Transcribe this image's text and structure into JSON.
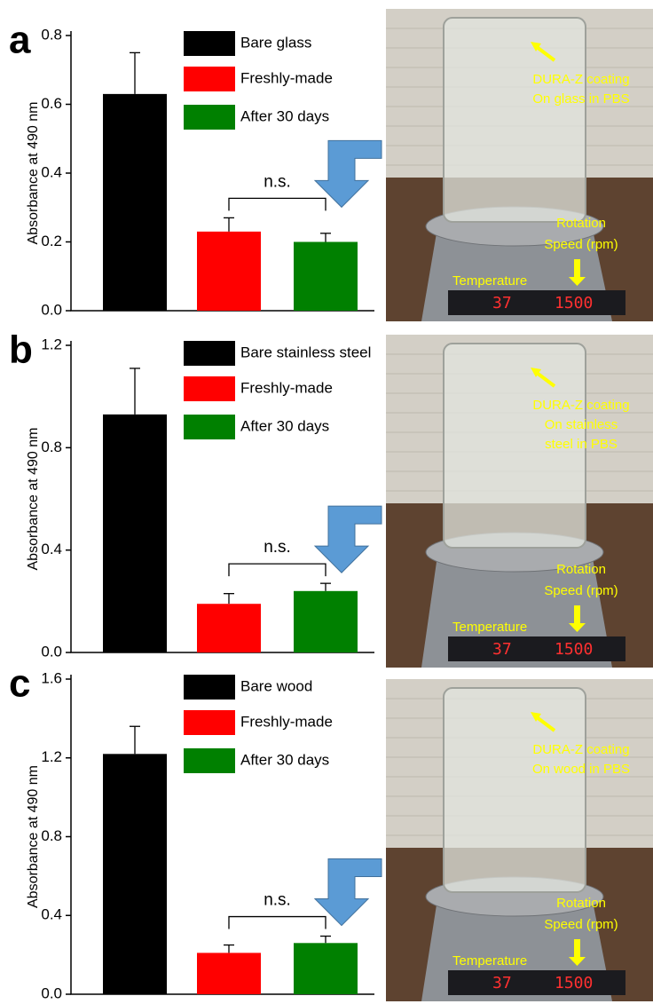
{
  "chart_data": [
    {
      "type": "bar",
      "panel": "a",
      "ylabel": "Absorbance at 490 nm",
      "categories": [
        "Bare glass",
        "Freshly-made",
        "After 30 days"
      ],
      "values": [
        0.63,
        0.23,
        0.2
      ],
      "errors": [
        0.12,
        0.04,
        0.025
      ],
      "colors": [
        "#000000",
        "#ff0000",
        "#008000"
      ],
      "ylim": [
        0,
        0.8
      ],
      "yticks": [
        {
          "value": 0,
          "label": "0.0"
        },
        0.2,
        0.4,
        0.6,
        0.8
      ],
      "annotation": "n.s.",
      "photo": {
        "coating_lines": [
          "DURA-Z coating",
          "On glass in PBS"
        ],
        "rotation_lines": [
          "Rotation",
          "Speed (rpm)"
        ],
        "temperature": "Temperature",
        "display_temp": "37",
        "display_speed": "1500"
      }
    },
    {
      "type": "bar",
      "panel": "b",
      "ylabel": "Absorbance at 490 nm",
      "categories": [
        "Bare stainless steel",
        "Freshly-made",
        "After 30 days"
      ],
      "values": [
        0.93,
        0.19,
        0.24
      ],
      "errors": [
        0.18,
        0.04,
        0.03
      ],
      "colors": [
        "#000000",
        "#ff0000",
        "#008000"
      ],
      "ylim": [
        0,
        1.2
      ],
      "yticks": [
        {
          "value": 0,
          "label": "0.0"
        },
        0.4,
        0.8,
        1.2
      ],
      "annotation": "n.s.",
      "photo": {
        "coating_lines": [
          "DURA-Z coating",
          "On stainless",
          "steel in PBS"
        ],
        "rotation_lines": [
          "Rotation",
          "Speed (rpm)"
        ],
        "temperature": "Temperature",
        "display_temp": "37",
        "display_speed": "1500"
      }
    },
    {
      "type": "bar",
      "panel": "c",
      "ylabel": "Absorbance at 490 nm",
      "categories": [
        "Bare wood",
        "Freshly-made",
        "After 30 days"
      ],
      "values": [
        1.22,
        0.21,
        0.26
      ],
      "errors": [
        0.14,
        0.04,
        0.035
      ],
      "colors": [
        "#000000",
        "#ff0000",
        "#008000"
      ],
      "ylim": [
        0,
        1.6
      ],
      "yticks": [
        {
          "value": 0,
          "label": "0.0"
        },
        0.4,
        0.8,
        1.2,
        1.6
      ],
      "annotation": "n.s.",
      "photo": {
        "coating_lines": [
          "DURA-Z coating",
          "On wood in PBS"
        ],
        "rotation_lines": [
          "Rotation",
          "Speed (rpm)"
        ],
        "temperature": "Temperature",
        "display_temp": "37",
        "display_speed": "1500"
      }
    }
  ]
}
